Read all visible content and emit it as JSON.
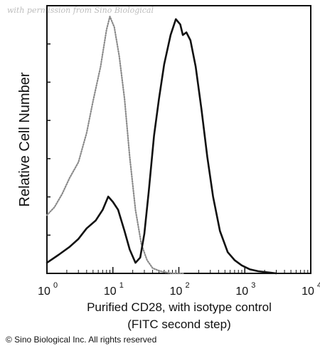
{
  "watermark": "with permission from Sino Biological",
  "copyright": "© Sino Biological Inc. All rights reserved",
  "chart_data": {
    "type": "line",
    "title": "",
    "ylabel": "Relative Cell Number",
    "xlabel_lines": [
      "Purified CD28, with isotype control",
      "(FITC second step)"
    ],
    "xscale": "log",
    "xlim": [
      1,
      10000
    ],
    "ylim": [
      0,
      1
    ],
    "y_tick_count": 7,
    "x_ticks": [
      {
        "base": "10",
        "exp": "0",
        "value": 1
      },
      {
        "base": "10",
        "exp": "1",
        "value": 10
      },
      {
        "base": "10",
        "exp": "2",
        "value": 100
      },
      {
        "base": "10",
        "exp": "3",
        "value": 1000
      },
      {
        "base": "10",
        "exp": "4",
        "value": 10000
      }
    ],
    "grid": false,
    "series": [
      {
        "role": "isotype control",
        "style": "dotted",
        "color": "#8a8a8a",
        "x": [
          1.0,
          1.3,
          1.7,
          2.2,
          3.0,
          4.0,
          5.0,
          6.5,
          8.0,
          9.0,
          10.5,
          12.5,
          15.0,
          18.0,
          22.0,
          27.0,
          33.0,
          40.0,
          50.0,
          60.0,
          80.0,
          120.0
        ],
        "y": [
          0.22,
          0.25,
          0.3,
          0.36,
          0.42,
          0.53,
          0.65,
          0.78,
          0.92,
          0.97,
          0.93,
          0.82,
          0.66,
          0.44,
          0.24,
          0.11,
          0.05,
          0.02,
          0.01,
          0.005,
          0.0,
          0.0
        ]
      },
      {
        "role": "Purified CD28",
        "style": "solid",
        "color": "#111111",
        "x": [
          1.0,
          1.5,
          2.2,
          3.0,
          4.0,
          5.5,
          7.0,
          8.5,
          10.0,
          12.0,
          15.0,
          18.0,
          22.0,
          26.0,
          30.0,
          35.0,
          42.0,
          50.0,
          60.0,
          75.0,
          90.0,
          105.0,
          115.0,
          130.0,
          150.0,
          180.0,
          220.0,
          270.0,
          330.0,
          420.0,
          550.0,
          700.0,
          900.0,
          1200.0,
          1600.0,
          2200.0,
          3000.0
        ],
        "y": [
          0.04,
          0.07,
          0.1,
          0.13,
          0.17,
          0.2,
          0.24,
          0.29,
          0.27,
          0.24,
          0.16,
          0.09,
          0.04,
          0.06,
          0.15,
          0.31,
          0.52,
          0.66,
          0.79,
          0.9,
          0.96,
          0.94,
          0.9,
          0.91,
          0.88,
          0.78,
          0.62,
          0.44,
          0.29,
          0.16,
          0.08,
          0.05,
          0.03,
          0.015,
          0.008,
          0.004,
          0.0
        ]
      }
    ]
  }
}
